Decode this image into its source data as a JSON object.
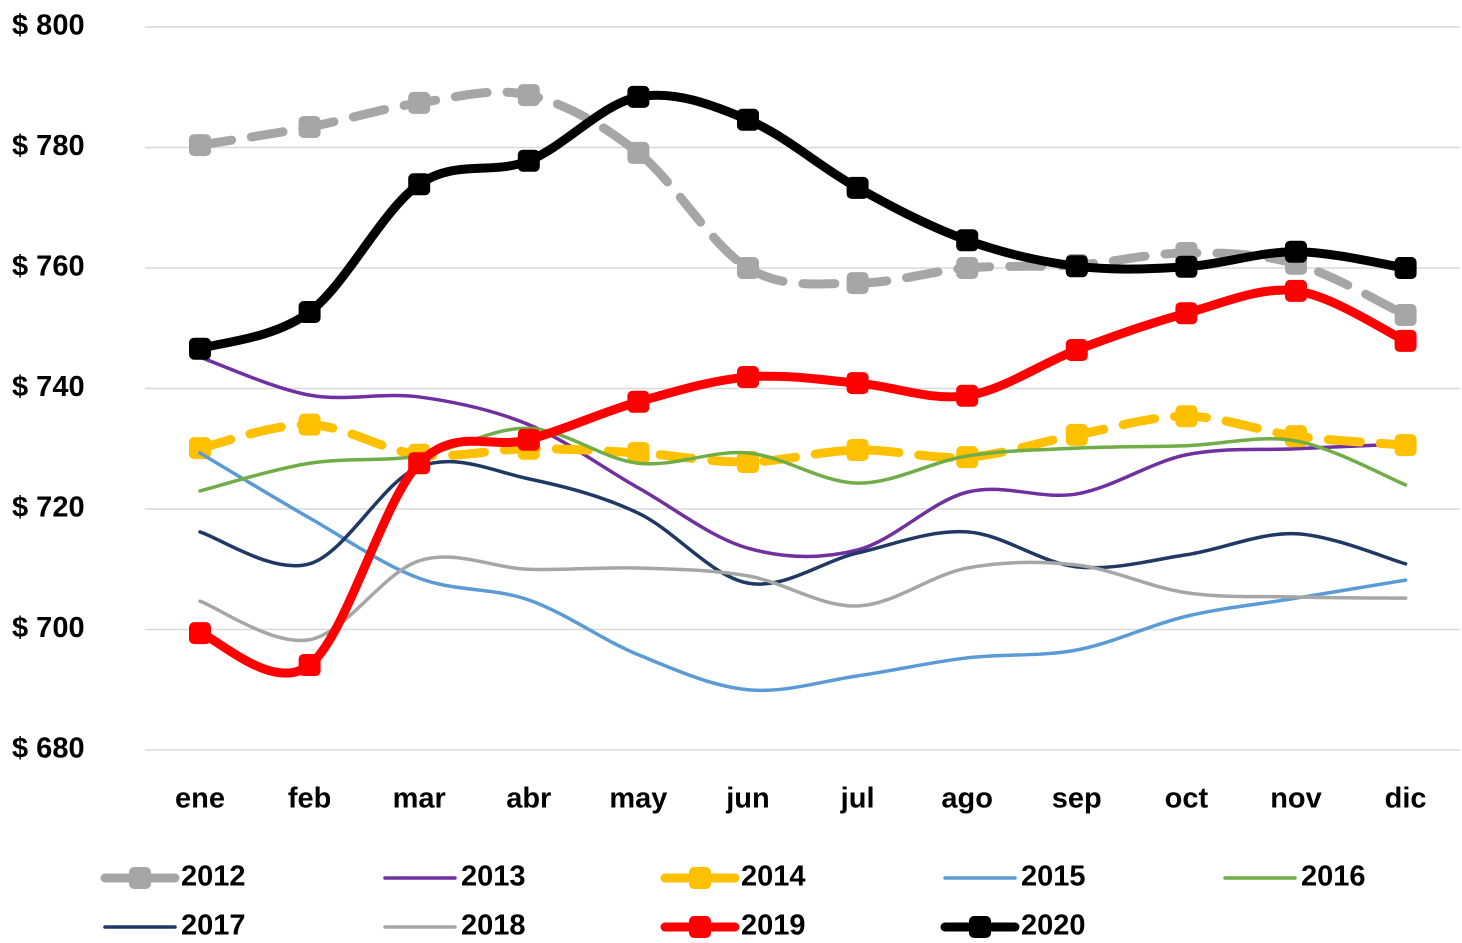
{
  "chart_data": {
    "type": "line",
    "categories": [
      "ene",
      "feb",
      "mar",
      "abr",
      "may",
      "jun",
      "jul",
      "ago",
      "sep",
      "oct",
      "nov",
      "dic"
    ],
    "ylim": [
      680,
      800
    ],
    "yticks": [
      {
        "value": 680,
        "label": "$ 680"
      },
      {
        "value": 700,
        "label": "$ 700"
      },
      {
        "value": 720,
        "label": "$ 720"
      },
      {
        "value": 740,
        "label": "$ 740"
      },
      {
        "value": 760,
        "label": "$ 760"
      },
      {
        "value": 780,
        "label": "$ 780"
      },
      {
        "value": 800,
        "label": "$ 800"
      }
    ],
    "grid": true,
    "legend": "bottom",
    "series": [
      {
        "name": "2012",
        "color": "#a6a6a6",
        "line_style": "dashed",
        "marker": "square",
        "values": [
          780.4,
          783.4,
          787.4,
          788.7,
          779.1,
          760,
          757.5,
          760,
          760.5,
          762.5,
          760.7,
          752.2
        ]
      },
      {
        "name": "2013",
        "color": "#7030a0",
        "line_style": "solid",
        "values": [
          745.2,
          738.9,
          738.6,
          734,
          723.5,
          713.5,
          713.2,
          722.8,
          722.5,
          729,
          730,
          730.8
        ]
      },
      {
        "name": "2014",
        "color": "#ffc000",
        "line_style": "dashed",
        "marker": "square",
        "values": [
          730.1,
          734,
          729,
          730,
          729.3,
          727.8,
          729.8,
          728.6,
          732.3,
          735.4,
          732.1,
          730.6
        ]
      },
      {
        "name": "2015",
        "color": "#5b9bd5",
        "line_style": "solid",
        "values": [
          729.3,
          718.5,
          708.5,
          704.9,
          695.8,
          690,
          692.3,
          695.3,
          696.6,
          702.2,
          705.2,
          708.2
        ]
      },
      {
        "name": "2016",
        "color": "#70ad47",
        "line_style": "solid",
        "values": [
          723,
          727.6,
          728.8,
          733.4,
          727.6,
          729.3,
          724.3,
          728.8,
          730.1,
          730.5,
          731.3,
          724
        ]
      },
      {
        "name": "2017",
        "color": "#1f3864",
        "line_style": "solid",
        "values": [
          716.2,
          710.9,
          727,
          725,
          719.3,
          707.7,
          712.7,
          716.2,
          710.4,
          712.4,
          715.9,
          710.9
        ]
      },
      {
        "name": "2018",
        "color": "#a6a6a6",
        "line_style": "solid",
        "values": [
          704.7,
          698.3,
          711.4,
          710,
          710.2,
          708.9,
          703.9,
          710.2,
          710.7,
          706.1,
          705.4,
          705.2
        ]
      },
      {
        "name": "2019",
        "color": "#ff0000",
        "line_style": "solid",
        "marker": "square",
        "values": [
          699.4,
          694.1,
          727.6,
          731.5,
          737.8,
          741.9,
          740.9,
          738.8,
          746.4,
          752.5,
          756.2,
          747.9
        ]
      },
      {
        "name": "2020",
        "color": "#000000",
        "line_style": "solid",
        "marker": "square",
        "values": [
          746.6,
          752.7,
          773.9,
          777.8,
          788.4,
          784.6,
          773.3,
          764.6,
          760.3,
          760.2,
          762.7,
          760
        ]
      }
    ]
  }
}
